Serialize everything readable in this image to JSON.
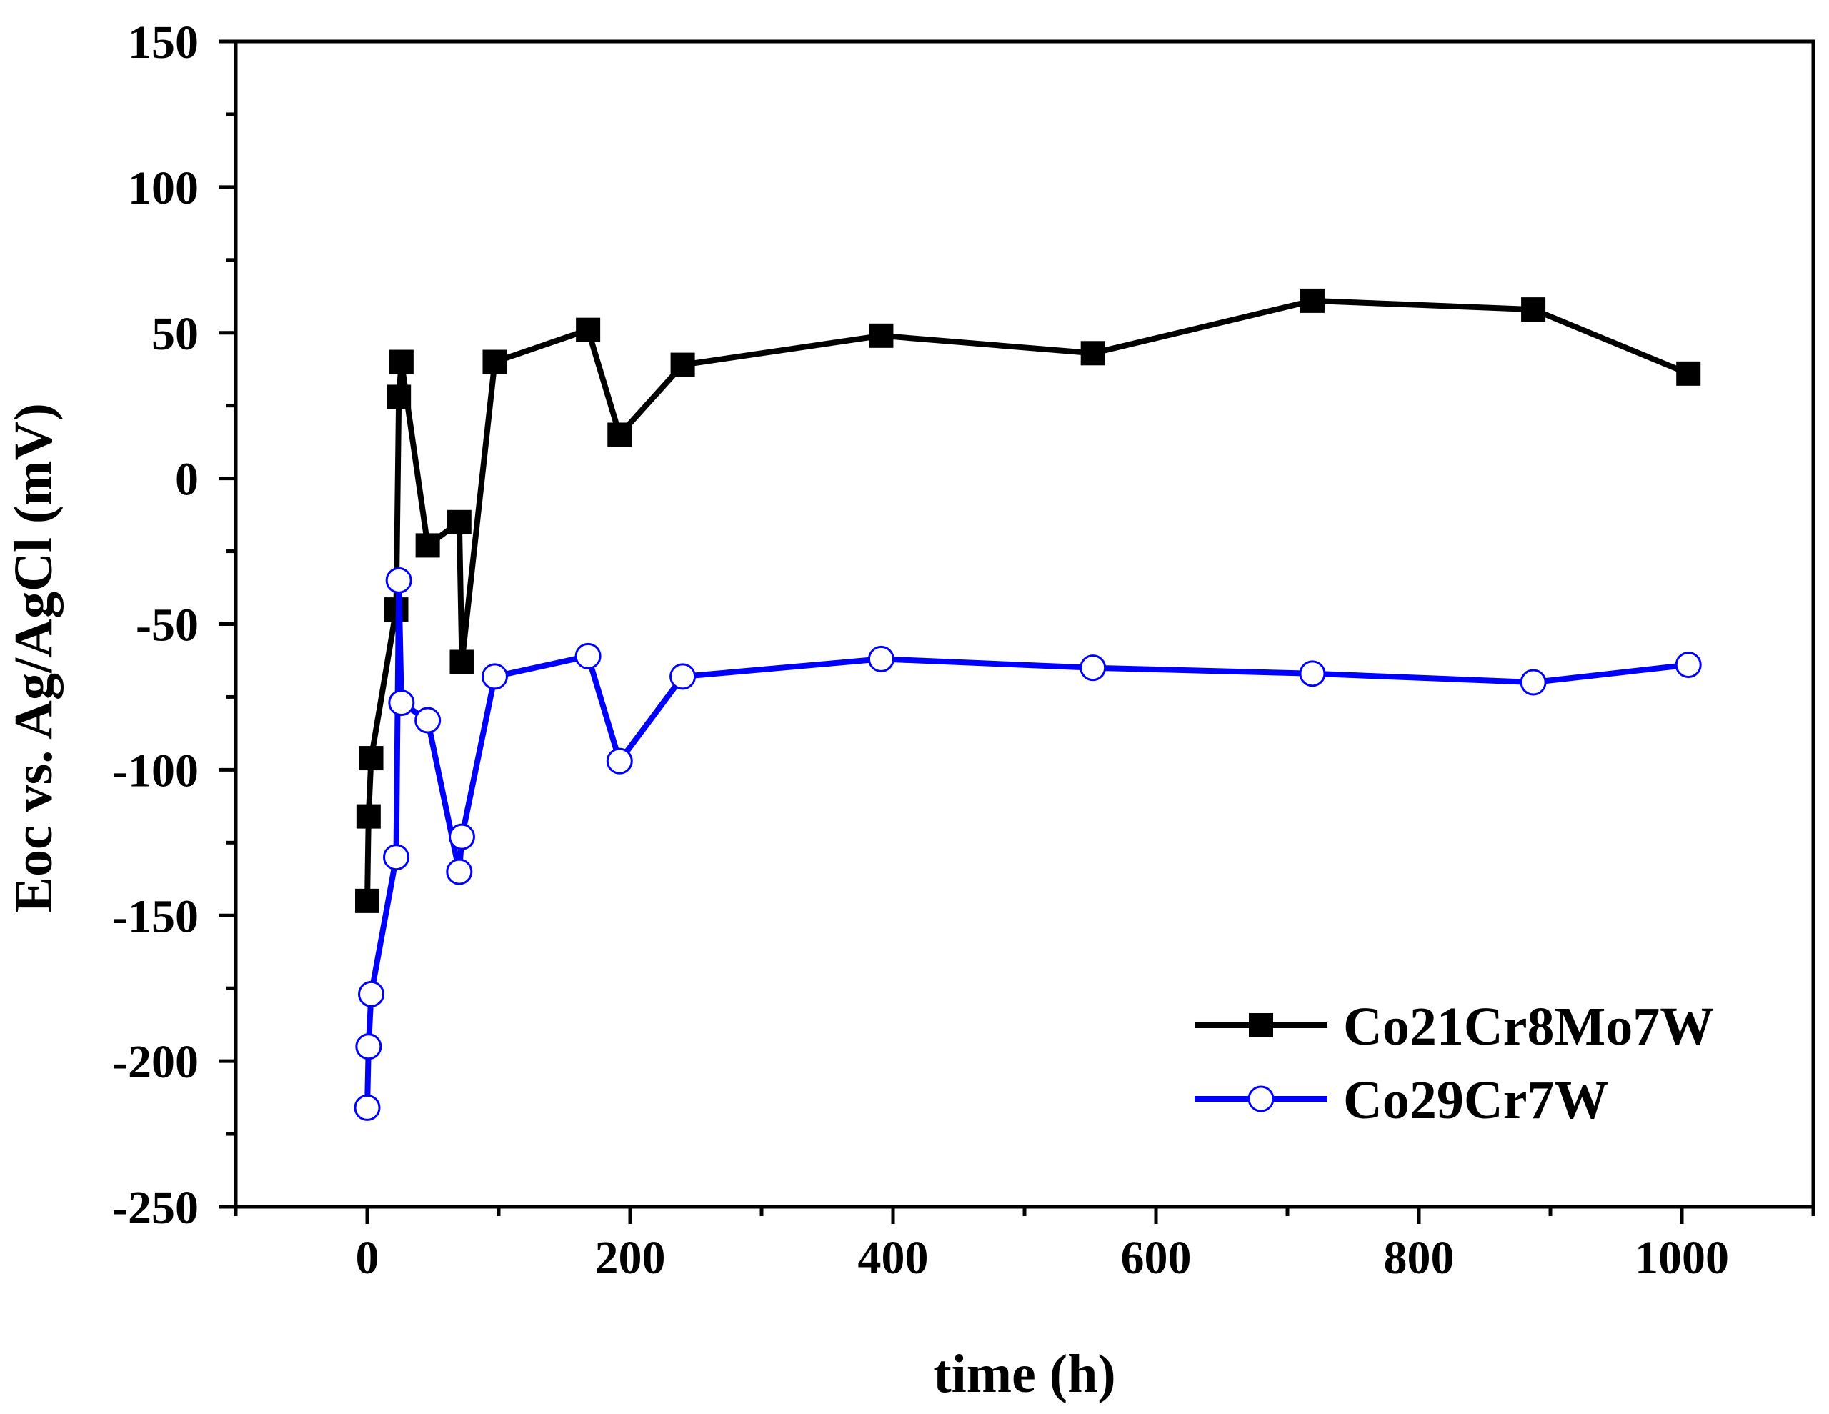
{
  "chart_data": {
    "type": "line",
    "title": "",
    "xlabel": "time (h)",
    "ylabel": "Eoc vs. Ag/AgCl (mV)",
    "xlim": [
      -100,
      1100
    ],
    "ylim": [
      -250,
      150
    ],
    "xticks": [
      0,
      200,
      400,
      600,
      800,
      1000
    ],
    "xtick_labels": [
      "0",
      "200",
      "400",
      "600",
      "800",
      "1000"
    ],
    "yticks": [
      150,
      100,
      50,
      0,
      -50,
      -100,
      -150,
      -200,
      -250
    ],
    "ytick_labels": [
      "150",
      "100",
      "50",
      "0",
      "-50",
      "-100",
      "-150",
      "-200",
      "-250"
    ],
    "grid": false,
    "legend_position": "bottom-right",
    "series": [
      {
        "name": "Co21Cr8Mo7W",
        "color": "#000000",
        "marker": "filled-square",
        "x": [
          0,
          1,
          3,
          22,
          24,
          26,
          46,
          70,
          72,
          97,
          168,
          192,
          240,
          391,
          552,
          719,
          887,
          1005
        ],
        "y": [
          -145,
          -116,
          -96,
          -45,
          28,
          40,
          -23,
          -15,
          -63,
          40,
          51,
          15,
          39,
          49,
          43,
          61,
          58,
          36
        ]
      },
      {
        "name": "Co29Cr7W",
        "color": "#0000ff",
        "marker": "open-circle",
        "x": [
          0,
          1,
          3,
          22,
          24,
          26,
          46,
          70,
          72,
          97,
          168,
          192,
          240,
          391,
          552,
          719,
          887,
          1005
        ],
        "y": [
          -216,
          -195,
          -177,
          -130,
          -35,
          -77,
          -83,
          -135,
          -123,
          -68,
          -61,
          -97,
          -68,
          -62,
          -65,
          -67,
          -70,
          -64
        ]
      }
    ]
  }
}
